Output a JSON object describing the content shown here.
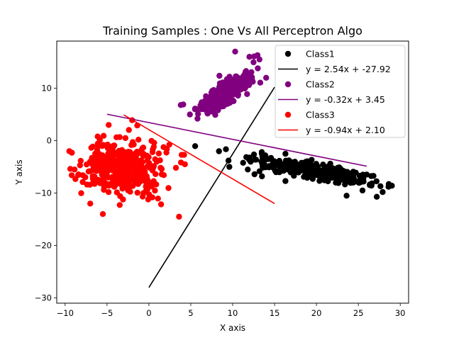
{
  "chart_data": {
    "type": "scatter",
    "title": "Training Samples : One Vs All Perceptron Algo",
    "xlabel": "X axis",
    "ylabel": "Y axis",
    "xlim": [
      -11,
      31
    ],
    "ylim": [
      -31,
      19
    ],
    "xticks": [
      -10,
      -5,
      0,
      5,
      10,
      15,
      20,
      25,
      30
    ],
    "yticks": [
      -30,
      -20,
      -10,
      0,
      10
    ],
    "grid": false,
    "legend_position": "top-right",
    "series": [
      {
        "name": "Class1",
        "kind": "points",
        "color": "#000000",
        "cluster": {
          "center": [
            19.5,
            -5.8
          ],
          "count": 300,
          "spread": [
            3.5,
            1.2
          ],
          "correlation": -0.75
        },
        "outliers": [
          [
            9.5,
            -3.8
          ],
          [
            9.6,
            -5.0
          ],
          [
            11.8,
            -5.5
          ],
          [
            13.5,
            -6.8
          ],
          [
            16.3,
            -7.7
          ],
          [
            28.6,
            -8.8
          ],
          [
            27.9,
            -9.8
          ],
          [
            27.2,
            -10.7
          ],
          [
            25.5,
            -9.5
          ],
          [
            23.6,
            -10.5
          ],
          [
            29.0,
            -8.6
          ]
        ]
      },
      {
        "name": "Class2",
        "kind": "points",
        "color": "#800080",
        "cluster": {
          "center": [
            9.0,
            9.0
          ],
          "count": 300,
          "spread": [
            1.6,
            2.0
          ],
          "correlation": 0.8
        },
        "outliers": [
          [
            10.3,
            17.0
          ],
          [
            13.2,
            15.5
          ],
          [
            12.0,
            16.0
          ],
          [
            5.8,
            4.2
          ],
          [
            3.8,
            6.8
          ],
          [
            4.1,
            6.9
          ],
          [
            14.0,
            12.0
          ],
          [
            13.0,
            13.8
          ]
        ]
      },
      {
        "name": "Class3",
        "kind": "points",
        "color": "#ff0000",
        "cluster": {
          "center": [
            -3.0,
            -5.0
          ],
          "count": 400,
          "spread": [
            2.2,
            2.5
          ],
          "correlation": 0.0
        },
        "outliers": [
          [
            -9.5,
            -2.0
          ],
          [
            -9.2,
            -2.3
          ],
          [
            -4.8,
            3.0
          ],
          [
            -2.0,
            3.9
          ],
          [
            3.6,
            -14.5
          ],
          [
            4.2,
            -2.7
          ],
          [
            4.3,
            -4.5
          ],
          [
            -7.0,
            -12.0
          ],
          [
            -5.5,
            -14.0
          ]
        ]
      },
      {
        "name": "y = 2.54x + -27.92",
        "kind": "line",
        "color": "#000000",
        "points": [
          [
            0,
            -28
          ],
          [
            15,
            10.2
          ]
        ]
      },
      {
        "name": "y = -0.32x + 3.45",
        "kind": "line",
        "color": "#800080",
        "points": [
          [
            -5,
            5.05
          ],
          [
            26,
            -4.87
          ]
        ]
      },
      {
        "name": "y = -0.94x + 2.10",
        "kind": "line",
        "color": "#ff0000",
        "points": [
          [
            -3,
            4.92
          ],
          [
            15,
            -12.0
          ]
        ]
      }
    ]
  }
}
